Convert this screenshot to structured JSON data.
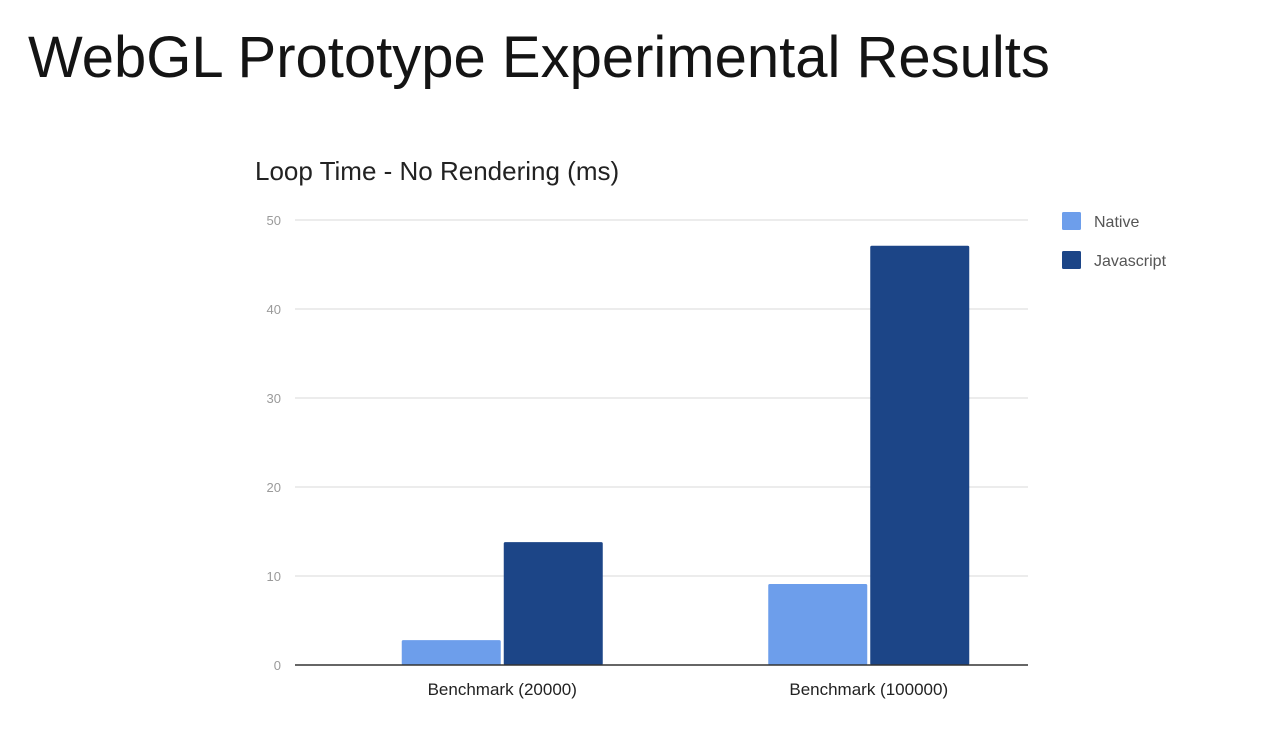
{
  "slide": {
    "title": "WebGL Prototype Experimental Results"
  },
  "colors": {
    "native": "#6d9eeb",
    "javascript": "#1c4587",
    "gridline": "#d9d9d9",
    "axis": "#333333"
  },
  "chart_data": {
    "type": "bar",
    "title": "Loop Time - No Rendering (ms)",
    "xlabel": "",
    "ylabel": "",
    "categories": [
      "Benchmark (20000)",
      "Benchmark (100000)"
    ],
    "series": [
      {
        "name": "Native",
        "values": [
          2.8,
          9.1
        ],
        "color": "#6d9eeb"
      },
      {
        "name": "Javascript",
        "values": [
          13.8,
          47.1
        ],
        "color": "#1c4587"
      }
    ],
    "ylim": [
      0,
      50
    ],
    "yticks": [
      "0",
      "10",
      "20",
      "30",
      "40",
      "50"
    ],
    "grid": true,
    "legend": "right"
  }
}
